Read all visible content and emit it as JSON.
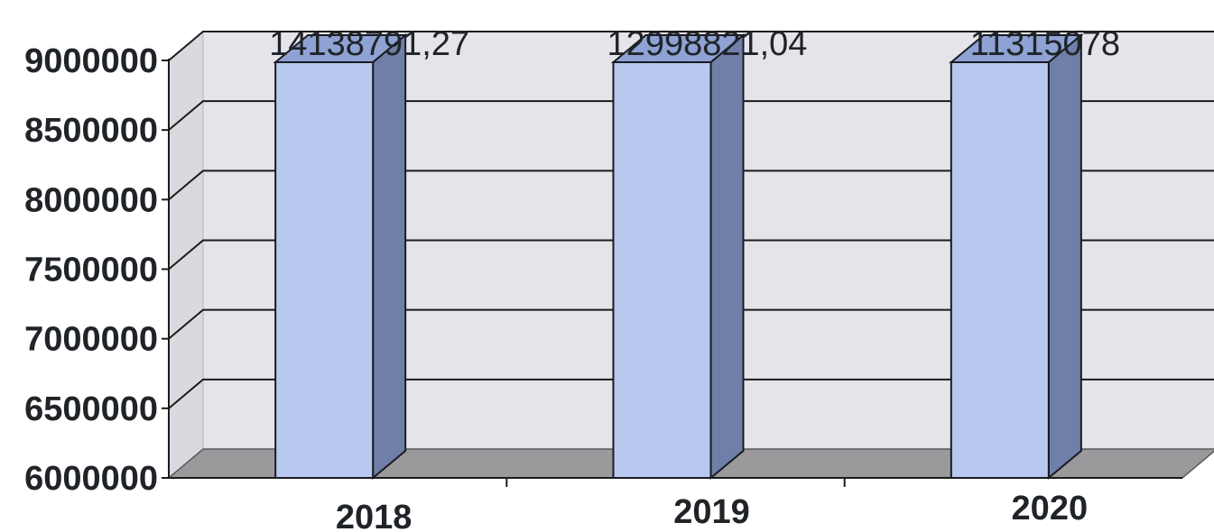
{
  "chart_data": {
    "type": "bar",
    "style": "3d-column",
    "categories": [
      "2018",
      "2019",
      "2020"
    ],
    "values": [
      14138791.27,
      12998821.04,
      11315078
    ],
    "data_labels": [
      "14138791,27",
      "12998821,04",
      "11315078"
    ],
    "y_tick_labels": [
      "6000000",
      "6500000",
      "7000000",
      "7500000",
      "8000000",
      "8500000",
      "9000000"
    ],
    "ylim": [
      6000000,
      9000000
    ],
    "title": "",
    "xlabel": "",
    "ylabel": "",
    "grid": true,
    "legend": "none",
    "colors": {
      "bar_front": "#b7c9ef",
      "bar_side": "#6f7fa8",
      "bar_top": "#8ea2d4",
      "wall": "#e4e4ea",
      "floor": "#9a9a9c",
      "gridline": "#1b1b1b",
      "text": "#202428"
    }
  }
}
